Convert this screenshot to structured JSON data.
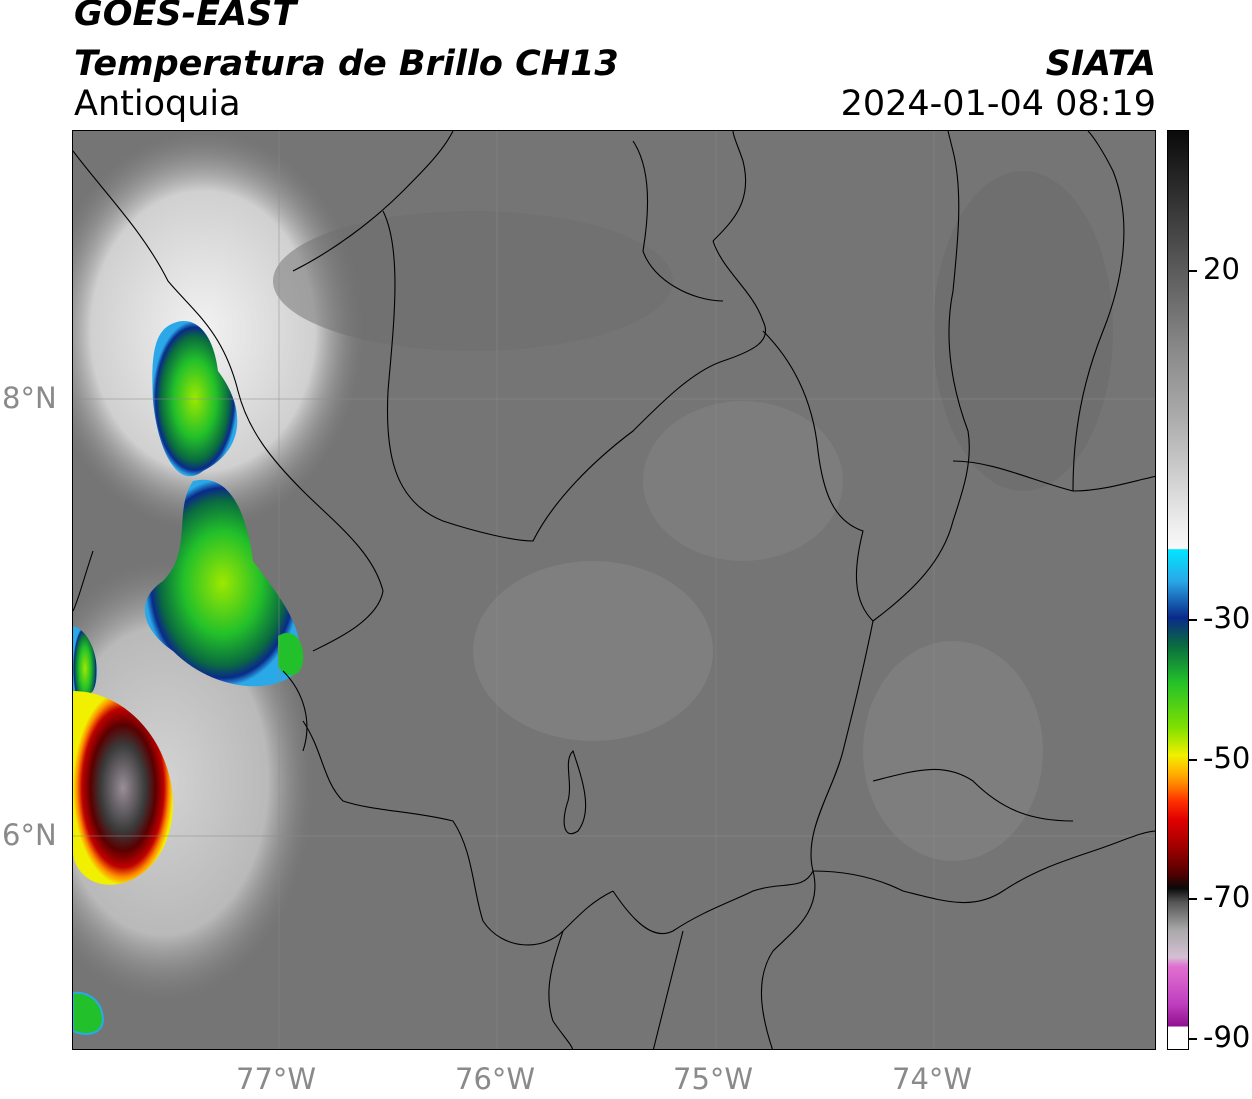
{
  "header": {
    "satellite": "GOES-EAST",
    "product": "Temperatura de Brillo CH13",
    "region": "Antioquia",
    "organization": "SIATA",
    "datetime": "2024-01-04 08:19"
  },
  "map": {
    "lat_ticks": [
      "8°N",
      "6°N"
    ],
    "lon_ticks": [
      "77°W",
      "76°W",
      "75°W",
      "74°W"
    ]
  },
  "colorbar": {
    "tick_labels": [
      "20",
      "-30",
      "-50",
      "-70",
      "-90"
    ],
    "colors": {
      "warm_gray": "#6f6f6f",
      "cyan": "#00e5ff",
      "blue": "#0a2a8a",
      "green": "#22c02a",
      "yellow": "#f0f000",
      "orange": "#ff8c00",
      "red": "#e00000",
      "dark_red": "#700000",
      "black": "#0a0a0a",
      "magenta": "#c040c0"
    }
  }
}
